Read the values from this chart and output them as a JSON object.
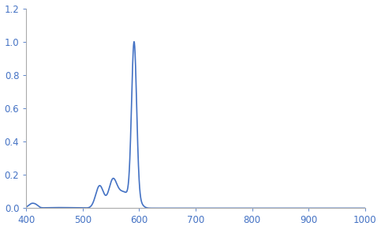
{
  "line_color": "#4472C4",
  "line_width": 1.2,
  "xlim": [
    400,
    1000
  ],
  "ylim": [
    0,
    1.2
  ],
  "xticks": [
    400,
    500,
    600,
    700,
    800,
    900,
    1000
  ],
  "yticks": [
    0,
    0.2,
    0.4,
    0.6,
    0.8,
    1.0,
    1.2
  ],
  "background_color": "#ffffff",
  "spine_color": "#aaaaaa",
  "tick_label_color": "#4472C4",
  "figsize": [
    4.83,
    2.91
  ],
  "dpi": 100
}
